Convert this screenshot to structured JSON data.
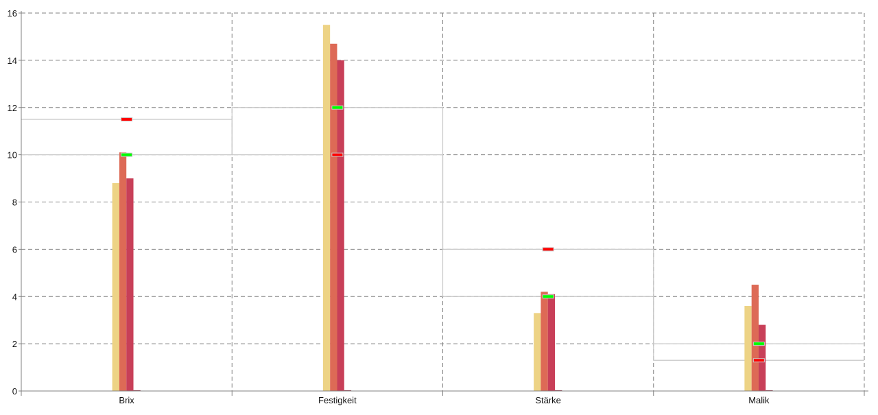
{
  "chart_data": {
    "type": "bar",
    "categories": [
      "Brix",
      "Festigkeit",
      "Stärke",
      "Malik"
    ],
    "series": [
      {
        "values": [
          8.8,
          15.5,
          3.3,
          3.6
        ],
        "color": "#edd385"
      },
      {
        "values": [
          10.1,
          14.7,
          4.2,
          4.5
        ],
        "color": "#dd6a56"
      },
      {
        "values": [
          9.0,
          14.0,
          4.1,
          2.8
        ],
        "color": "#c83f58"
      },
      {
        "values": [
          0,
          0,
          0,
          0
        ],
        "color": "#8a2a40"
      }
    ],
    "markers": [
      {
        "color": "#00ff00",
        "values": [
          10,
          12,
          4,
          2
        ]
      },
      {
        "color": "#ff0000",
        "values": [
          11.5,
          10,
          6,
          1.3
        ]
      }
    ],
    "step_line_color": "#c8c8c8",
    "yticks": [
      "0",
      "2",
      "4",
      "6",
      "8",
      "10",
      "12",
      "14",
      "16"
    ],
    "ylim": [
      0,
      16
    ],
    "grid": true,
    "xlabel": "",
    "ylabel": "",
    "title": ""
  }
}
